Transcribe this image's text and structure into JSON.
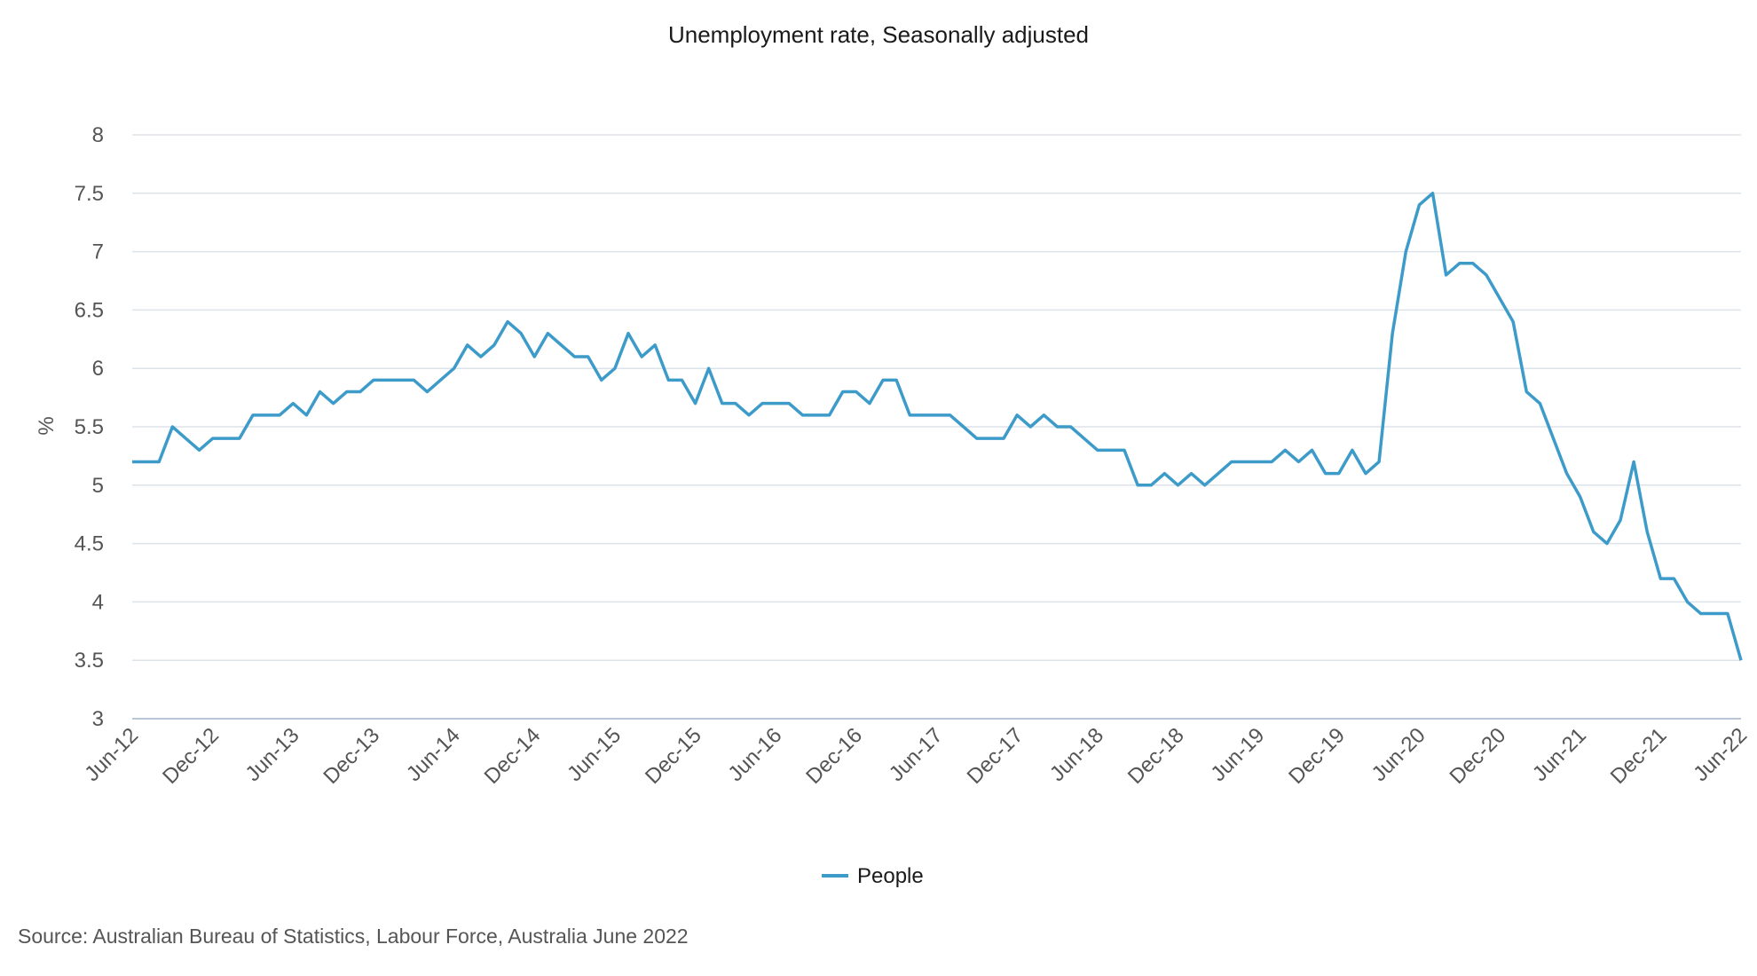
{
  "chart_data": {
    "type": "line",
    "title": "Unemployment rate, Seasonally adjusted",
    "ylabel": "%",
    "xlabel": "",
    "ylim": [
      3,
      8
    ],
    "yticks": [
      "3",
      "3.5",
      "4",
      "4.5",
      "5",
      "5.5",
      "6",
      "6.5",
      "7",
      "7.5",
      "8"
    ],
    "xticks": [
      "Jun-12",
      "Dec-12",
      "Jun-13",
      "Dec-13",
      "Jun-14",
      "Dec-14",
      "Jun-15",
      "Dec-15",
      "Jun-16",
      "Dec-16",
      "Jun-17",
      "Dec-17",
      "Jun-18",
      "Dec-18",
      "Jun-19",
      "Dec-19",
      "Jun-20",
      "Dec-20",
      "Jun-21",
      "Dec-21",
      "Jun-22"
    ],
    "grid": true,
    "legend_position": "bottom",
    "series": [
      {
        "name": "People",
        "color": "#3d9bc9",
        "values": [
          5.2,
          5.2,
          5.2,
          5.5,
          5.4,
          5.3,
          5.4,
          5.4,
          5.4,
          5.6,
          5.6,
          5.6,
          5.7,
          5.6,
          5.8,
          5.7,
          5.8,
          5.8,
          5.9,
          5.9,
          5.9,
          5.9,
          5.8,
          5.9,
          6.0,
          6.2,
          6.1,
          6.2,
          6.4,
          6.3,
          6.1,
          6.3,
          6.2,
          6.1,
          6.1,
          5.9,
          6.0,
          6.3,
          6.1,
          6.2,
          5.9,
          5.9,
          5.7,
          6.0,
          5.7,
          5.7,
          5.6,
          5.7,
          5.7,
          5.7,
          5.6,
          5.6,
          5.6,
          5.8,
          5.8,
          5.7,
          5.9,
          5.9,
          5.6,
          5.6,
          5.6,
          5.6,
          5.5,
          5.4,
          5.4,
          5.4,
          5.6,
          5.5,
          5.6,
          5.5,
          5.5,
          5.4,
          5.3,
          5.3,
          5.3,
          5.0,
          5.0,
          5.1,
          5.0,
          5.1,
          5.0,
          5.1,
          5.2,
          5.2,
          5.2,
          5.2,
          5.3,
          5.2,
          5.3,
          5.1,
          5.1,
          5.3,
          5.1,
          5.2,
          6.3,
          7.0,
          7.4,
          7.5,
          6.8,
          6.9,
          6.9,
          6.8,
          6.6,
          6.4,
          5.8,
          5.7,
          5.4,
          5.1,
          4.9,
          4.6,
          4.5,
          4.7,
          5.2,
          4.6,
          4.2,
          4.2,
          4.0,
          3.9,
          3.9,
          3.9,
          3.5
        ]
      }
    ]
  },
  "source": "Source: Australian Bureau of Statistics, Labour Force, Australia June 2022"
}
